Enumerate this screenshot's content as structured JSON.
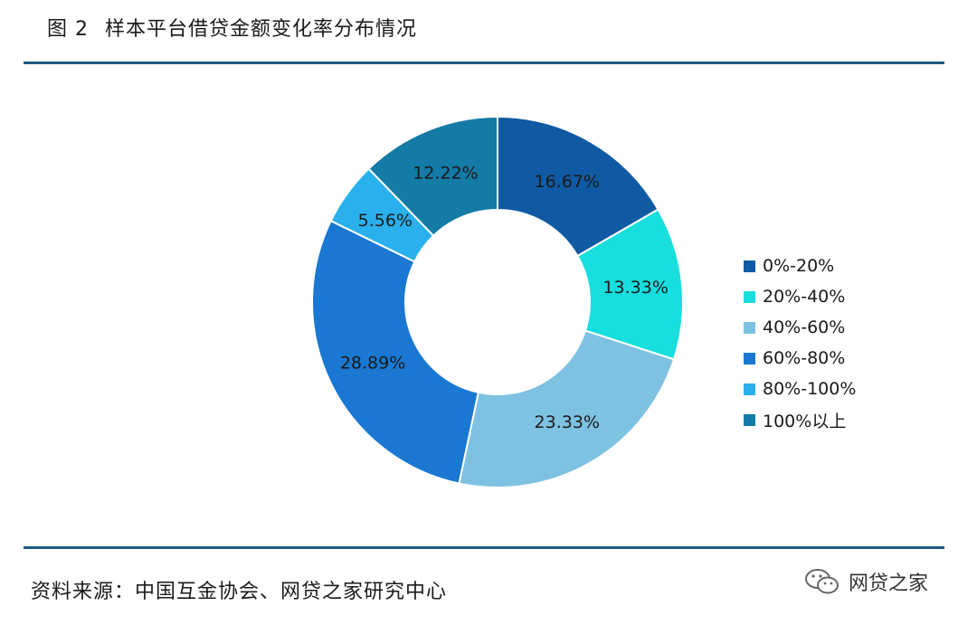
{
  "title": {
    "fig": "图 2",
    "text": "样本平台借贷金额变化率分布情况"
  },
  "chart_data": {
    "type": "pie",
    "style": "donut",
    "title": "样本平台借贷金额变化率分布情况",
    "legend_position": "right",
    "categories": [
      "0%-20%",
      "20%-40%",
      "40%-60%",
      "60%-80%",
      "80%-100%",
      "100%以上"
    ],
    "values": [
      16.67,
      13.33,
      23.33,
      28.89,
      5.56,
      12.22
    ],
    "value_labels": [
      "16.67%",
      "13.33%",
      "23.33%",
      "28.89%",
      "5.56%",
      "12.22%"
    ],
    "colors": [
      "#0f5aa2",
      "#18dede",
      "#7ec2e2",
      "#1a78d2",
      "#2ab0ec",
      "#147aa6"
    ]
  },
  "source": "资料来源：中国互金协会、网贷之家研究中心",
  "watermark": {
    "icon": "wechat-icon",
    "text": "网贷之家"
  }
}
